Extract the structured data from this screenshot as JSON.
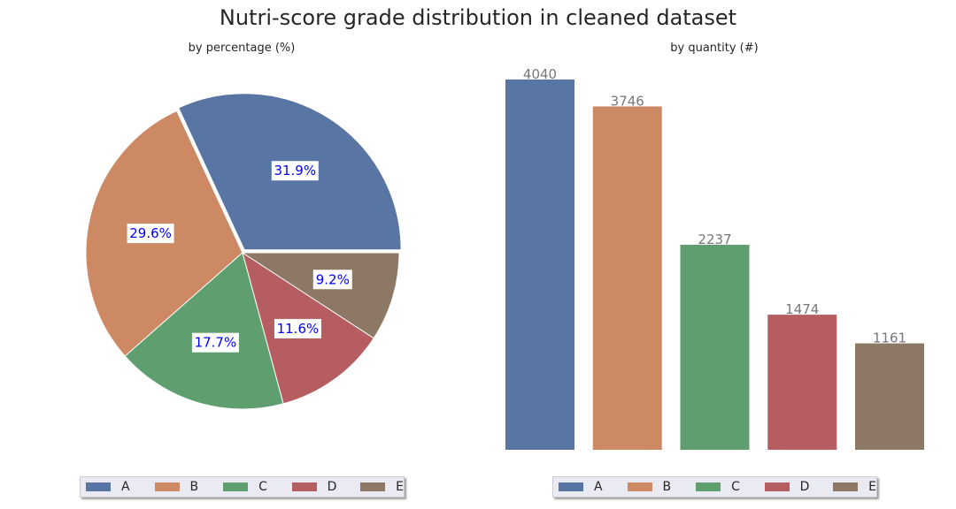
{
  "title": "Nutri-score grade distribution in cleaned dataset",
  "colors": {
    "A": "#5875a4",
    "B": "#cc8963",
    "C": "#5f9e6e",
    "D": "#b55d60",
    "E": "#8c7864",
    "pct_label_text": "#0000ff",
    "bar_label_text": "#777777"
  },
  "legend": {
    "labels": [
      "A",
      "B",
      "C",
      "D",
      "E"
    ]
  },
  "chart_data": [
    {
      "type": "pie",
      "title": "by percentage (%)",
      "categories": [
        "A",
        "B",
        "C",
        "D",
        "E"
      ],
      "values": [
        31.9,
        29.6,
        17.7,
        11.6,
        9.2
      ],
      "labels": [
        "31.9%",
        "29.6%",
        "17.7%",
        "11.6%",
        "9.2%"
      ],
      "start_angle_deg": 0,
      "direction": "counterclockwise",
      "exploded": [
        "A"
      ],
      "legend_placement": "bottom"
    },
    {
      "type": "bar",
      "title": "by quantity (#)",
      "categories": [
        "A",
        "B",
        "C",
        "D",
        "E"
      ],
      "values": [
        4040,
        3746,
        2237,
        1474,
        1161
      ],
      "labels": [
        "4040",
        "3746",
        "2237",
        "1474",
        "1161"
      ],
      "ylim": [
        0,
        4242
      ],
      "grid": false,
      "axes_visible": false,
      "legend_placement": "bottom"
    }
  ]
}
